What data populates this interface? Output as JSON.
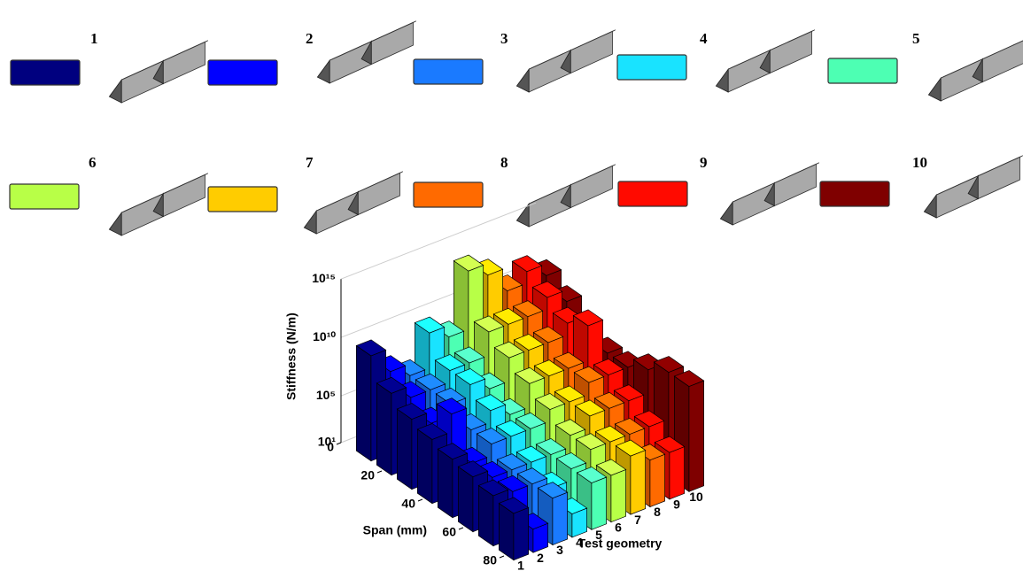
{
  "chart_data": {
    "type": "bar3d",
    "zlabel": "Stiffness (N/m)",
    "xlabel": "Span (mm)",
    "ylabel": "Test geometry",
    "categories": [
      "1",
      "2",
      "3",
      "4",
      "5",
      "6",
      "7",
      "8",
      "9",
      "10"
    ],
    "x": [
      10,
      20,
      30,
      40,
      50,
      60,
      70,
      80
    ],
    "xlim": [
      0,
      80
    ],
    "xticks": [
      0,
      20,
      40,
      60,
      80
    ],
    "zscale": "log",
    "zlim": [
      10,
      1000000000000000.0
    ],
    "zticks": [
      {
        "value": 10,
        "label": "10¹"
      },
      {
        "value": 100000,
        "label": "10⁵"
      },
      {
        "value": 10000000000,
        "label": "10¹⁰"
      },
      {
        "value": 1000000000000000.0,
        "label": "10¹⁵"
      }
    ],
    "series": [
      {
        "name": "1",
        "color": "#00007f",
        "values": [
          10000000000.0,
          100000000.0,
          10000000.0,
          3000000.0,
          1000000.0,
          500000.0,
          200000.0,
          100000.0
        ]
      },
      {
        "name": "2",
        "color": "#0000ff",
        "values": [
          100000000.0,
          10000000.0,
          1000000.0,
          100000000.0,
          100000.0,
          100000.0,
          100000.0,
          1000.0
        ]
      },
      {
        "name": "3",
        "color": "#1a7aff",
        "values": [
          10000000.0,
          10000000.0,
          10000000.0,
          1000000.0,
          1000000.0,
          100000.0,
          100000.0,
          100000.0
        ]
      },
      {
        "name": "4",
        "color": "#19e3ff",
        "values": [
          10000000000.0,
          100000000.0,
          100000000.0,
          10000000.0,
          1000000.0,
          100000.0,
          10000.0,
          1000.0
        ]
      },
      {
        "name": "5",
        "color": "#4dffb3",
        "values": [
          1000000000.0,
          100000000.0,
          10000000.0,
          1000000.0,
          1000000.0,
          100000.0,
          100000.0,
          100000.0
        ]
      },
      {
        "name": "6",
        "color": "#b8ff47",
        "values": [
          100000000000000.0,
          10000000000.0,
          1000000000.0,
          100000000.0,
          10000000.0,
          1000000.0,
          1000000.0,
          100000.0
        ]
      },
      {
        "name": "7",
        "color": "#ffcc00",
        "values": [
          10000000000000.0,
          10000000000.0,
          1000000000.0,
          100000000.0,
          10000000.0,
          10000000.0,
          1000000.0,
          1000000.0
        ]
      },
      {
        "name": "8",
        "color": "#ff6a00",
        "values": [
          100000000000.0,
          10000000000.0,
          1000000000.0,
          100000000.0,
          100000000.0,
          10000000.0,
          1000000.0,
          100000.0
        ]
      },
      {
        "name": "9",
        "color": "#ff0a00",
        "values": [
          1000000000000.0,
          100000000000.0,
          10000000000.0,
          100000000000.0,
          100000000.0,
          10000000.0,
          1000000.0,
          100000.0
        ]
      },
      {
        "name": "10",
        "color": "#7f0000",
        "values": [
          100000000000.0,
          10000000000.0,
          1000000000.0,
          100000000.0,
          100000000.0,
          1000000000.0,
          10000000000.0,
          10000000000.0
        ]
      }
    ]
  }
}
